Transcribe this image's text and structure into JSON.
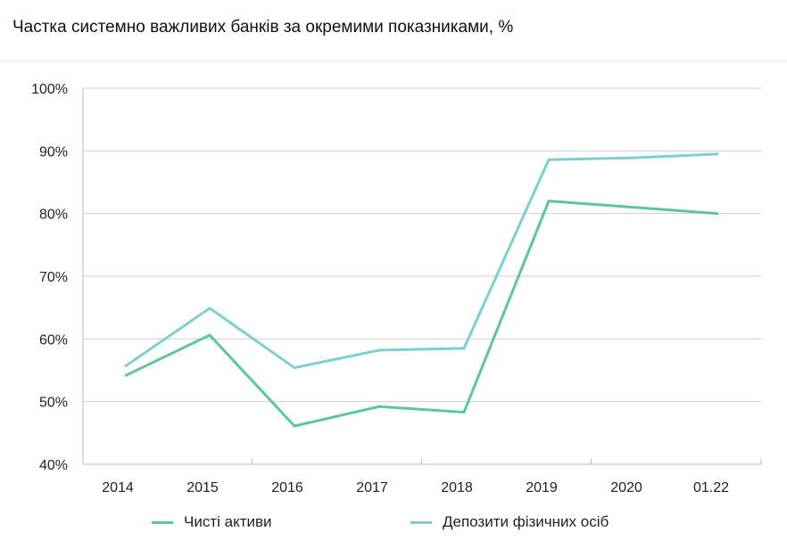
{
  "title": "Частка системно важливих банків за окремими показниками, %",
  "chart_data": {
    "type": "line",
    "title": "Частка системно важливих банків за окремими показниками, %",
    "categories": [
      "2014",
      "2015",
      "2016",
      "2017",
      "2018",
      "2019",
      "2020",
      "01.22"
    ],
    "ylim": [
      40,
      100
    ],
    "yticks": [
      "40%",
      "50%",
      "60%",
      "70%",
      "80%",
      "90%",
      "100%"
    ],
    "grid": true,
    "legend_position": "bottom",
    "series": [
      {
        "name": "Чисті активи",
        "color": "#5cc79b",
        "values": [
          54.1,
          60.6,
          46.1,
          49.2,
          48.3,
          82.0,
          81.0,
          80.0
        ]
      },
      {
        "name": "Депозити фізичних осіб",
        "color": "#7ecfd0",
        "values": [
          55.6,
          64.9,
          55.4,
          58.2,
          58.5,
          88.6,
          88.9,
          89.5
        ]
      }
    ]
  }
}
